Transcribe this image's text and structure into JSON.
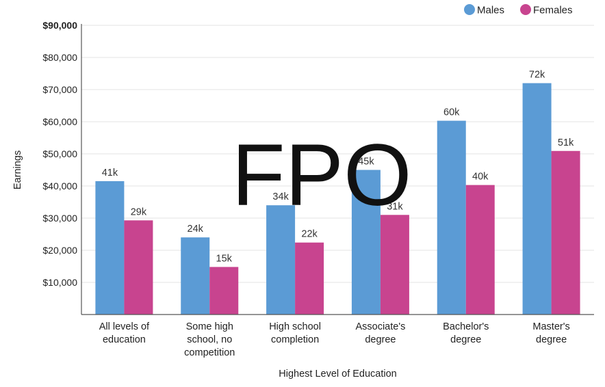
{
  "chart_data": {
    "type": "bar",
    "categories": [
      [
        "All levels of",
        "education"
      ],
      [
        "Some high",
        "school, no",
        "competition"
      ],
      [
        "High school",
        "completion"
      ],
      [
        "Associate's",
        "degree"
      ],
      [
        "Bachelor's",
        "degree"
      ],
      [
        "Master's",
        "degree"
      ]
    ],
    "series": [
      {
        "name": "Males",
        "color": "#5b9bd5",
        "values": [
          41500,
          24000,
          34000,
          45000,
          60300,
          72000
        ],
        "labels": [
          "41k",
          "24k",
          "34k",
          "45k",
          "60k",
          "72k"
        ]
      },
      {
        "name": "Females",
        "color": "#c8448f",
        "values": [
          29300,
          14800,
          22400,
          31000,
          40300,
          50900
        ],
        "labels": [
          "29k",
          "15k",
          "22k",
          "31k",
          "40k",
          "51k"
        ]
      }
    ],
    "xlabel": "Highest Level of Education",
    "ylabel": "Earnings",
    "ylim": [
      0,
      90000
    ],
    "yticks": [
      {
        "value": 10000,
        "label": "$10,000"
      },
      {
        "value": 20000,
        "label": "$20,000"
      },
      {
        "value": 30000,
        "label": "$30,000"
      },
      {
        "value": 40000,
        "label": "$40,000"
      },
      {
        "value": 50000,
        "label": "$50,000"
      },
      {
        "value": 60000,
        "label": "$60,000"
      },
      {
        "value": 70000,
        "label": "$70,000"
      },
      {
        "value": 80000,
        "label": "$80,000"
      },
      {
        "value": 90000,
        "label": "$90,000"
      }
    ],
    "grid": true,
    "legend_position": "top-right"
  },
  "watermark": "FPO"
}
